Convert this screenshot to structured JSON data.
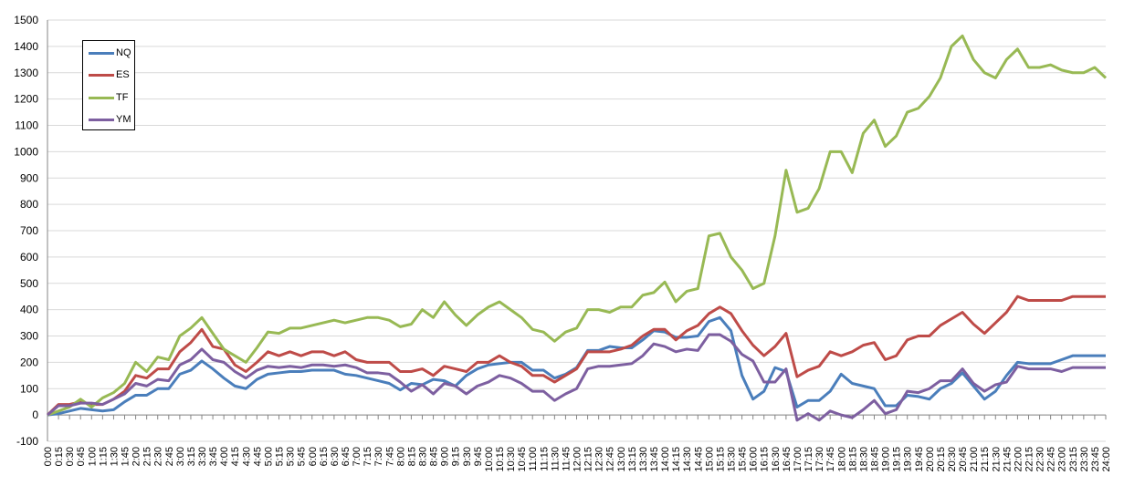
{
  "chart_data": {
    "type": "line",
    "title": "",
    "xlabel": "",
    "ylabel": "",
    "ylim": [
      -100,
      1500
    ],
    "y_ticks": [
      "-100",
      "0",
      "100",
      "200",
      "300",
      "400",
      "500",
      "600",
      "700",
      "800",
      "900",
      "1000",
      "1100",
      "1200",
      "1300",
      "1400",
      "1500"
    ],
    "grid": "horizontal",
    "legend_position": "top-left",
    "x": [
      "0:00",
      "0:15",
      "0:30",
      "0:45",
      "1:00",
      "1:15",
      "1:30",
      "1:45",
      "2:00",
      "2:15",
      "2:30",
      "2:45",
      "3:00",
      "3:15",
      "3:30",
      "3:45",
      "4:00",
      "4:15",
      "4:30",
      "4:45",
      "5:00",
      "5:15",
      "5:30",
      "5:45",
      "6:00",
      "6:15",
      "6:30",
      "6:45",
      "7:00",
      "7:15",
      "7:30",
      "7:45",
      "8:00",
      "8:15",
      "8:30",
      "8:45",
      "9:00",
      "9:15",
      "9:30",
      "9:45",
      "10:00",
      "10:15",
      "10:30",
      "10:45",
      "11:00",
      "11:15",
      "11:30",
      "11:45",
      "12:00",
      "12:15",
      "12:30",
      "12:45",
      "13:00",
      "13:15",
      "13:30",
      "13:45",
      "14:00",
      "14:15",
      "14:30",
      "14:45",
      "15:00",
      "15:15",
      "15:30",
      "15:45",
      "16:00",
      "16:15",
      "16:30",
      "16:45",
      "17:00",
      "17:15",
      "17:30",
      "17:45",
      "18:00",
      "18:15",
      "18:30",
      "18:45",
      "19:00",
      "19:15",
      "19:30",
      "19:45",
      "20:00",
      "20:15",
      "20:30",
      "20:45",
      "21:00",
      "21:15",
      "21:30",
      "21:45",
      "22:00",
      "22:15",
      "22:30",
      "22:45",
      "23:00",
      "23:15",
      "23:30",
      "23:45",
      "24:00"
    ],
    "series": [
      {
        "name": "NQ",
        "color": "#4a7ebb",
        "values": [
          0,
          5,
          15,
          25,
          20,
          15,
          20,
          50,
          75,
          75,
          100,
          100,
          155,
          170,
          205,
          175,
          140,
          110,
          100,
          135,
          155,
          160,
          165,
          165,
          170,
          170,
          170,
          155,
          150,
          140,
          130,
          120,
          95,
          120,
          115,
          135,
          130,
          110,
          150,
          175,
          190,
          195,
          200,
          200,
          170,
          170,
          140,
          155,
          180,
          245,
          245,
          260,
          255,
          255,
          285,
          320,
          315,
          295,
          295,
          300,
          355,
          370,
          320,
          150,
          60,
          90,
          180,
          165,
          30,
          55,
          55,
          90,
          155,
          120,
          110,
          100,
          35,
          35,
          75,
          70,
          60,
          100,
          120,
          160,
          110,
          60,
          90,
          150,
          200,
          195,
          195,
          195,
          210,
          225,
          225,
          225,
          225
        ]
      },
      {
        "name": "ES",
        "color": "#be4b48",
        "values": [
          0,
          40,
          40,
          50,
          40,
          40,
          60,
          90,
          150,
          140,
          175,
          175,
          240,
          275,
          325,
          260,
          250,
          190,
          165,
          200,
          240,
          225,
          240,
          225,
          240,
          240,
          225,
          240,
          210,
          200,
          200,
          200,
          165,
          165,
          175,
          150,
          185,
          175,
          165,
          200,
          200,
          225,
          200,
          185,
          150,
          150,
          125,
          150,
          175,
          240,
          240,
          240,
          250,
          265,
          300,
          325,
          325,
          285,
          320,
          340,
          385,
          410,
          385,
          320,
          265,
          225,
          260,
          310,
          145,
          170,
          185,
          240,
          225,
          240,
          265,
          275,
          210,
          225,
          285,
          300,
          300,
          340,
          365,
          390,
          345,
          310,
          350,
          390,
          450,
          435,
          435,
          435,
          435,
          450,
          450,
          450,
          450
        ]
      },
      {
        "name": "TF",
        "color": "#98b954",
        "values": [
          0,
          15,
          30,
          60,
          30,
          65,
          85,
          120,
          200,
          165,
          220,
          210,
          300,
          330,
          370,
          310,
          250,
          225,
          200,
          255,
          315,
          310,
          330,
          330,
          340,
          350,
          360,
          350,
          360,
          370,
          370,
          360,
          335,
          345,
          400,
          370,
          430,
          380,
          340,
          380,
          410,
          430,
          400,
          370,
          325,
          315,
          280,
          315,
          330,
          400,
          400,
          390,
          410,
          410,
          455,
          465,
          505,
          430,
          470,
          480,
          680,
          690,
          600,
          550,
          480,
          500,
          680,
          930,
          770,
          785,
          860,
          1000,
          1000,
          920,
          1070,
          1120,
          1020,
          1060,
          1150,
          1165,
          1210,
          1280,
          1400,
          1440,
          1350,
          1300,
          1280,
          1350,
          1390,
          1320,
          1320,
          1330,
          1310,
          1300,
          1300,
          1320,
          1280
        ]
      },
      {
        "name": "YM",
        "color": "#7d5fa0",
        "values": [
          0,
          35,
          35,
          45,
          45,
          40,
          60,
          80,
          120,
          110,
          135,
          130,
          190,
          210,
          250,
          210,
          200,
          165,
          140,
          170,
          185,
          180,
          185,
          180,
          190,
          190,
          185,
          190,
          180,
          160,
          160,
          155,
          125,
          90,
          115,
          80,
          120,
          110,
          80,
          110,
          125,
          150,
          140,
          120,
          90,
          90,
          55,
          80,
          100,
          175,
          185,
          185,
          190,
          195,
          225,
          270,
          260,
          240,
          250,
          245,
          305,
          305,
          280,
          230,
          205,
          125,
          125,
          175,
          -20,
          5,
          -20,
          15,
          0,
          -10,
          20,
          55,
          5,
          20,
          90,
          85,
          100,
          130,
          130,
          175,
          120,
          90,
          115,
          125,
          185,
          175,
          175,
          175,
          165,
          180,
          180,
          180,
          180
        ]
      }
    ]
  }
}
